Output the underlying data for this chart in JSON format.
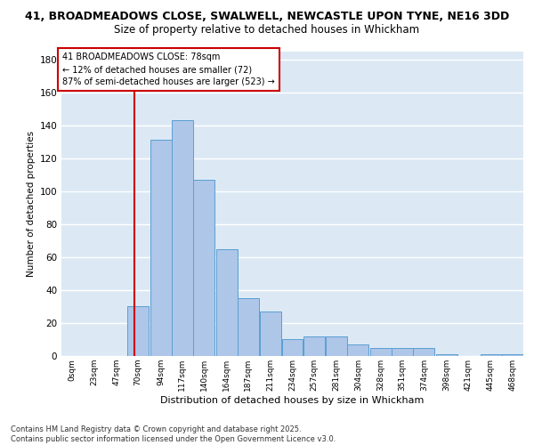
{
  "title_line1": "41, BROADMEADOWS CLOSE, SWALWELL, NEWCASTLE UPON TYNE, NE16 3DD",
  "title_line2": "Size of property relative to detached houses in Whickham",
  "xlabel": "Distribution of detached houses by size in Whickham",
  "ylabel": "Number of detached properties",
  "bar_color": "#aec6e8",
  "bar_edge_color": "#5a9fd4",
  "background_color": "#dce9f5",
  "grid_color": "#ffffff",
  "bins": [
    0,
    23,
    47,
    70,
    94,
    117,
    140,
    164,
    187,
    211,
    234,
    257,
    281,
    304,
    328,
    351,
    374,
    398,
    421,
    445,
    468
  ],
  "bin_labels": [
    "0sqm",
    "23sqm",
    "47sqm",
    "70sqm",
    "94sqm",
    "117sqm",
    "140sqm",
    "164sqm",
    "187sqm",
    "211sqm",
    "234sqm",
    "257sqm",
    "281sqm",
    "304sqm",
    "328sqm",
    "351sqm",
    "374sqm",
    "398sqm",
    "421sqm",
    "445sqm",
    "468sqm"
  ],
  "values": [
    0,
    0,
    0,
    30,
    131,
    143,
    107,
    65,
    35,
    27,
    10,
    12,
    12,
    7,
    5,
    5,
    5,
    1,
    0,
    1,
    1
  ],
  "property_size": 78,
  "annotation_text": "41 BROADMEADOWS CLOSE: 78sqm\n← 12% of detached houses are smaller (72)\n87% of semi-detached houses are larger (523) →",
  "red_line_color": "#cc0000",
  "annotation_box_edge": "#cc0000",
  "ylim": [
    0,
    185
  ],
  "yticks": [
    0,
    20,
    40,
    60,
    80,
    100,
    120,
    140,
    160,
    180
  ],
  "footer_text": "Contains HM Land Registry data © Crown copyright and database right 2025.\nContains public sector information licensed under the Open Government Licence v3.0.",
  "title_fontsize": 9,
  "subtitle_fontsize": 8.5
}
